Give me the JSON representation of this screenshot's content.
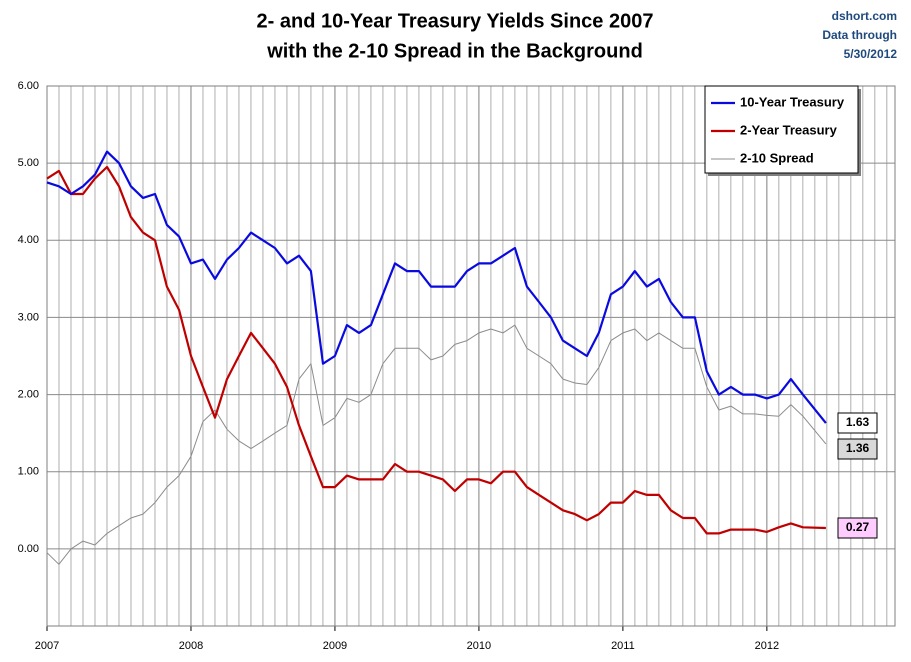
{
  "chart_data": {
    "type": "line",
    "title": [
      "2- and 10-Year Treasury Yields Since 2007",
      "with the 2-10 Spread in the Background"
    ],
    "annotations": [
      "dshort.com",
      "Data through",
      "5/30/2012"
    ],
    "x": [
      2007.0,
      2007.083,
      2007.167,
      2007.25,
      2007.333,
      2007.417,
      2007.5,
      2007.583,
      2007.667,
      2007.75,
      2007.833,
      2007.917,
      2008.0,
      2008.083,
      2008.167,
      2008.25,
      2008.333,
      2008.417,
      2008.5,
      2008.583,
      2008.667,
      2008.75,
      2008.833,
      2008.917,
      2009.0,
      2009.083,
      2009.167,
      2009.25,
      2009.333,
      2009.417,
      2009.5,
      2009.583,
      2009.667,
      2009.75,
      2009.833,
      2009.917,
      2010.0,
      2010.083,
      2010.167,
      2010.25,
      2010.333,
      2010.417,
      2010.5,
      2010.583,
      2010.667,
      2010.75,
      2010.833,
      2010.917,
      2011.0,
      2011.083,
      2011.167,
      2011.25,
      2011.333,
      2011.417,
      2011.5,
      2011.583,
      2011.667,
      2011.75,
      2011.833,
      2011.917,
      2012.0,
      2012.083,
      2012.167,
      2012.25,
      2012.41
    ],
    "series": [
      {
        "name": "10-Year Treasury",
        "color": "#0a0ae0",
        "values": [
          4.75,
          4.7,
          4.6,
          4.7,
          4.85,
          5.15,
          5.0,
          4.7,
          4.55,
          4.6,
          4.2,
          4.05,
          3.7,
          3.75,
          3.5,
          3.75,
          3.9,
          4.1,
          4.0,
          3.9,
          3.7,
          3.8,
          3.6,
          2.4,
          2.5,
          2.9,
          2.8,
          2.9,
          3.3,
          3.7,
          3.6,
          3.6,
          3.4,
          3.4,
          3.4,
          3.6,
          3.7,
          3.7,
          3.8,
          3.9,
          3.4,
          3.2,
          3.0,
          2.7,
          2.6,
          2.5,
          2.8,
          3.3,
          3.4,
          3.6,
          3.4,
          3.5,
          3.2,
          3.0,
          3.0,
          2.3,
          2.0,
          2.1,
          2.0,
          2.0,
          1.95,
          2.0,
          2.2,
          2.0,
          1.63
        ]
      },
      {
        "name": "2-Year Treasury",
        "color": "#c00000",
        "values": [
          4.8,
          4.9,
          4.6,
          4.6,
          4.8,
          4.95,
          4.7,
          4.3,
          4.1,
          4.0,
          3.4,
          3.1,
          2.5,
          2.1,
          1.7,
          2.2,
          2.5,
          2.8,
          2.6,
          2.4,
          2.1,
          1.6,
          1.2,
          0.8,
          0.8,
          0.95,
          0.9,
          0.9,
          0.9,
          1.1,
          1.0,
          1.0,
          0.95,
          0.9,
          0.75,
          0.9,
          0.9,
          0.85,
          1.0,
          1.0,
          0.8,
          0.7,
          0.6,
          0.5,
          0.45,
          0.37,
          0.45,
          0.6,
          0.6,
          0.75,
          0.7,
          0.7,
          0.5,
          0.4,
          0.4,
          0.2,
          0.2,
          0.25,
          0.25,
          0.25,
          0.22,
          0.28,
          0.33,
          0.28,
          0.27
        ]
      },
      {
        "name": "2-10 Spread",
        "color": "#8c8c8c",
        "values": [
          -0.05,
          -0.2,
          0.0,
          0.1,
          0.05,
          0.2,
          0.3,
          0.4,
          0.45,
          0.6,
          0.8,
          0.95,
          1.2,
          1.65,
          1.8,
          1.55,
          1.4,
          1.3,
          1.4,
          1.5,
          1.6,
          2.2,
          2.4,
          1.6,
          1.7,
          1.95,
          1.9,
          2.0,
          2.4,
          2.6,
          2.6,
          2.6,
          2.45,
          2.5,
          2.65,
          2.7,
          2.8,
          2.85,
          2.8,
          2.9,
          2.6,
          2.5,
          2.4,
          2.2,
          2.15,
          2.13,
          2.35,
          2.7,
          2.8,
          2.85,
          2.7,
          2.8,
          2.7,
          2.6,
          2.6,
          2.1,
          1.8,
          1.85,
          1.75,
          1.75,
          1.73,
          1.72,
          1.87,
          1.72,
          1.36
        ]
      }
    ],
    "xlim": [
      2007,
      2012.89
    ],
    "xticks": [
      2007,
      2008,
      2009,
      2010,
      2011,
      2012
    ],
    "ylim": [
      -1,
      6
    ],
    "yticks": [
      {
        "value": 0,
        "label": "0.00"
      },
      {
        "value": 1,
        "label": "1.00"
      },
      {
        "value": 2,
        "label": "2.00"
      },
      {
        "value": 3,
        "label": "3.00"
      },
      {
        "value": 4,
        "label": "4.00"
      },
      {
        "value": 5,
        "label": "5.00"
      },
      {
        "value": 6,
        "label": "6.00"
      }
    ],
    "grid": true,
    "legend": "top-right"
  }
}
